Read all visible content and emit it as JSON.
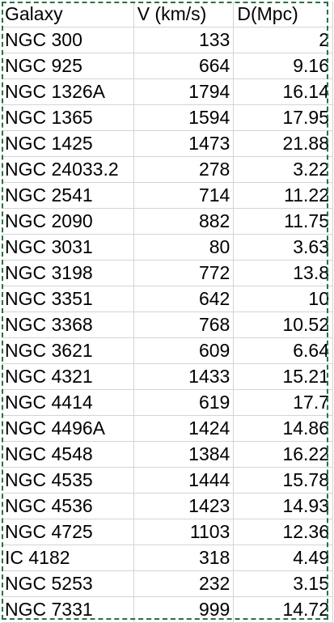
{
  "sheet": {
    "headers": [
      "Galaxy",
      "V (km/s)",
      "D(Mpc)"
    ],
    "rows": [
      [
        "NGC 300",
        "133",
        "2"
      ],
      [
        "NGC 925",
        "664",
        "9.16"
      ],
      [
        "NGC 1326A",
        "1794",
        "16.14"
      ],
      [
        "NGC 1365",
        "1594",
        "17.95"
      ],
      [
        "NGC 1425",
        "1473",
        "21.88"
      ],
      [
        "NGC 24033.2",
        "278",
        "3.22"
      ],
      [
        "NGC 2541",
        "714",
        "11.22"
      ],
      [
        "NGC 2090",
        "882",
        "11.75"
      ],
      [
        "NGC 3031",
        "80",
        "3.63"
      ],
      [
        "NGC 3198",
        "772",
        "13.8"
      ],
      [
        "NGC 3351",
        "642",
        "10"
      ],
      [
        "NGC 3368",
        "768",
        "10.52"
      ],
      [
        "NGC 3621",
        "609",
        "6.64"
      ],
      [
        "NGC 4321",
        "1433",
        "15.21"
      ],
      [
        "NGC 4414",
        "619",
        "17.7"
      ],
      [
        "NGC 4496A",
        "1424",
        "14.86"
      ],
      [
        "NGC 4548",
        "1384",
        "16.22"
      ],
      [
        "NGC 4535",
        "1444",
        "15.78"
      ],
      [
        "NGC 4536",
        "1423",
        "14.93"
      ],
      [
        "NGC 4725",
        "1103",
        "12.36"
      ],
      [
        "IC 4182",
        "318",
        "4.49"
      ],
      [
        "NGC 5253",
        "232",
        "3.15"
      ],
      [
        "NGC 7331",
        "999",
        "14.72"
      ]
    ],
    "selection_color": "#217346",
    "gridline_color": "#d4d4d4"
  }
}
